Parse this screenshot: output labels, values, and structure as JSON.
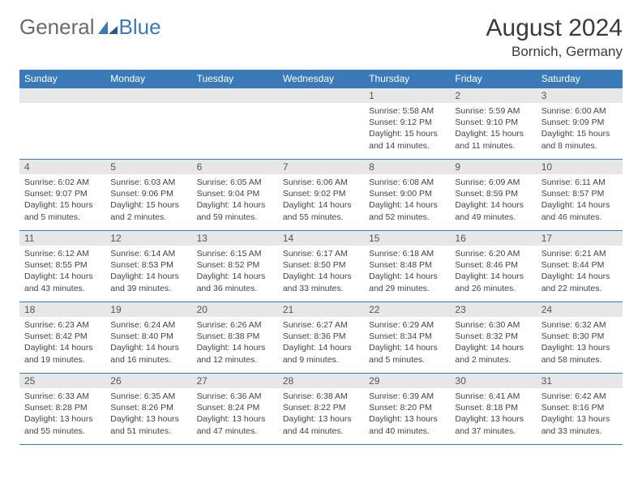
{
  "logo": {
    "text1": "General",
    "text2": "Blue"
  },
  "title": "August 2024",
  "location": "Bornich, Germany",
  "colors": {
    "header_bg": "#3a7ab8",
    "header_text": "#ffffff",
    "daynum_bg": "#e7e7e7",
    "border": "#3a7ab8",
    "body_text": "#444444",
    "page_bg": "#ffffff"
  },
  "dayHeaders": [
    "Sunday",
    "Monday",
    "Tuesday",
    "Wednesday",
    "Thursday",
    "Friday",
    "Saturday"
  ],
  "weeks": [
    [
      null,
      null,
      null,
      null,
      {
        "n": "1",
        "sunrise": "5:58 AM",
        "sunset": "9:12 PM",
        "daylight": "15 hours and 14 minutes."
      },
      {
        "n": "2",
        "sunrise": "5:59 AM",
        "sunset": "9:10 PM",
        "daylight": "15 hours and 11 minutes."
      },
      {
        "n": "3",
        "sunrise": "6:00 AM",
        "sunset": "9:09 PM",
        "daylight": "15 hours and 8 minutes."
      }
    ],
    [
      {
        "n": "4",
        "sunrise": "6:02 AM",
        "sunset": "9:07 PM",
        "daylight": "15 hours and 5 minutes."
      },
      {
        "n": "5",
        "sunrise": "6:03 AM",
        "sunset": "9:06 PM",
        "daylight": "15 hours and 2 minutes."
      },
      {
        "n": "6",
        "sunrise": "6:05 AM",
        "sunset": "9:04 PM",
        "daylight": "14 hours and 59 minutes."
      },
      {
        "n": "7",
        "sunrise": "6:06 AM",
        "sunset": "9:02 PM",
        "daylight": "14 hours and 55 minutes."
      },
      {
        "n": "8",
        "sunrise": "6:08 AM",
        "sunset": "9:00 PM",
        "daylight": "14 hours and 52 minutes."
      },
      {
        "n": "9",
        "sunrise": "6:09 AM",
        "sunset": "8:59 PM",
        "daylight": "14 hours and 49 minutes."
      },
      {
        "n": "10",
        "sunrise": "6:11 AM",
        "sunset": "8:57 PM",
        "daylight": "14 hours and 46 minutes."
      }
    ],
    [
      {
        "n": "11",
        "sunrise": "6:12 AM",
        "sunset": "8:55 PM",
        "daylight": "14 hours and 43 minutes."
      },
      {
        "n": "12",
        "sunrise": "6:14 AM",
        "sunset": "8:53 PM",
        "daylight": "14 hours and 39 minutes."
      },
      {
        "n": "13",
        "sunrise": "6:15 AM",
        "sunset": "8:52 PM",
        "daylight": "14 hours and 36 minutes."
      },
      {
        "n": "14",
        "sunrise": "6:17 AM",
        "sunset": "8:50 PM",
        "daylight": "14 hours and 33 minutes."
      },
      {
        "n": "15",
        "sunrise": "6:18 AM",
        "sunset": "8:48 PM",
        "daylight": "14 hours and 29 minutes."
      },
      {
        "n": "16",
        "sunrise": "6:20 AM",
        "sunset": "8:46 PM",
        "daylight": "14 hours and 26 minutes."
      },
      {
        "n": "17",
        "sunrise": "6:21 AM",
        "sunset": "8:44 PM",
        "daylight": "14 hours and 22 minutes."
      }
    ],
    [
      {
        "n": "18",
        "sunrise": "6:23 AM",
        "sunset": "8:42 PM",
        "daylight": "14 hours and 19 minutes."
      },
      {
        "n": "19",
        "sunrise": "6:24 AM",
        "sunset": "8:40 PM",
        "daylight": "14 hours and 16 minutes."
      },
      {
        "n": "20",
        "sunrise": "6:26 AM",
        "sunset": "8:38 PM",
        "daylight": "14 hours and 12 minutes."
      },
      {
        "n": "21",
        "sunrise": "6:27 AM",
        "sunset": "8:36 PM",
        "daylight": "14 hours and 9 minutes."
      },
      {
        "n": "22",
        "sunrise": "6:29 AM",
        "sunset": "8:34 PM",
        "daylight": "14 hours and 5 minutes."
      },
      {
        "n": "23",
        "sunrise": "6:30 AM",
        "sunset": "8:32 PM",
        "daylight": "14 hours and 2 minutes."
      },
      {
        "n": "24",
        "sunrise": "6:32 AM",
        "sunset": "8:30 PM",
        "daylight": "13 hours and 58 minutes."
      }
    ],
    [
      {
        "n": "25",
        "sunrise": "6:33 AM",
        "sunset": "8:28 PM",
        "daylight": "13 hours and 55 minutes."
      },
      {
        "n": "26",
        "sunrise": "6:35 AM",
        "sunset": "8:26 PM",
        "daylight": "13 hours and 51 minutes."
      },
      {
        "n": "27",
        "sunrise": "6:36 AM",
        "sunset": "8:24 PM",
        "daylight": "13 hours and 47 minutes."
      },
      {
        "n": "28",
        "sunrise": "6:38 AM",
        "sunset": "8:22 PM",
        "daylight": "13 hours and 44 minutes."
      },
      {
        "n": "29",
        "sunrise": "6:39 AM",
        "sunset": "8:20 PM",
        "daylight": "13 hours and 40 minutes."
      },
      {
        "n": "30",
        "sunrise": "6:41 AM",
        "sunset": "8:18 PM",
        "daylight": "13 hours and 37 minutes."
      },
      {
        "n": "31",
        "sunrise": "6:42 AM",
        "sunset": "8:16 PM",
        "daylight": "13 hours and 33 minutes."
      }
    ]
  ],
  "labels": {
    "sunrise": "Sunrise:",
    "sunset": "Sunset:",
    "daylight": "Daylight:"
  }
}
